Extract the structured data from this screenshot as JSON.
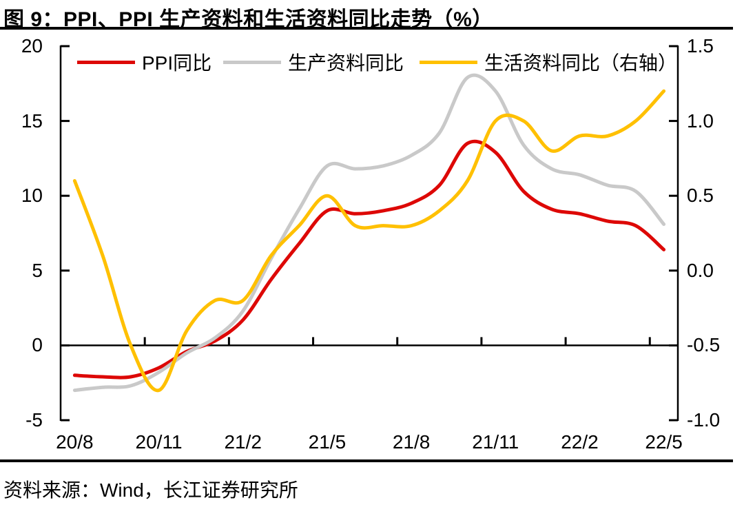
{
  "title": "图 9：PPI、PPI 生产资料和生活资料同比走势（%）",
  "source_note": "资料来源：Wind，长江证券研究所",
  "colors": {
    "ppi_red": "#DD0806",
    "producer_gray": "#C9C9C9",
    "consumer_yellow": "#FFC000",
    "axis_black": "#000000"
  },
  "chart_data": {
    "type": "line",
    "smooth": true,
    "legend_position": "top",
    "x": [
      "20/8",
      "20/9",
      "20/10",
      "20/11",
      "20/12",
      "21/1",
      "21/2",
      "21/3",
      "21/4",
      "21/5",
      "21/6",
      "21/7",
      "21/8",
      "21/9",
      "21/10",
      "21/11",
      "21/12",
      "22/1",
      "22/2",
      "22/3",
      "22/4",
      "22/5"
    ],
    "x_tick_labels": [
      "20/8",
      "20/11",
      "21/2",
      "21/5",
      "21/8",
      "21/11",
      "22/2",
      "22/5"
    ],
    "series": [
      {
        "name": "PPI同比",
        "axis": "left",
        "color": "#DD0806",
        "values": [
          -2.0,
          -2.1,
          -2.1,
          -1.5,
          -0.4,
          0.3,
          1.7,
          4.4,
          6.8,
          9.0,
          8.8,
          9.0,
          9.5,
          10.7,
          13.5,
          12.9,
          10.3,
          9.1,
          8.8,
          8.3,
          8.0,
          6.4
        ]
      },
      {
        "name": "生产资料同比",
        "axis": "left",
        "color": "#C9C9C9",
        "values": [
          -3.0,
          -2.8,
          -2.7,
          -1.8,
          -0.5,
          0.5,
          2.3,
          5.8,
          9.1,
          12.0,
          11.8,
          12.0,
          12.7,
          14.2,
          17.9,
          17.0,
          13.4,
          11.8,
          11.4,
          10.7,
          10.3,
          8.1
        ]
      },
      {
        "name": "生活资料同比（右轴）",
        "axis": "right",
        "color": "#FFC000",
        "values": [
          0.6,
          0.1,
          -0.5,
          -0.8,
          -0.4,
          -0.2,
          -0.2,
          0.1,
          0.3,
          0.5,
          0.3,
          0.3,
          0.3,
          0.4,
          0.6,
          1.0,
          1.0,
          0.8,
          0.9,
          0.9,
          1.0,
          1.2
        ]
      }
    ],
    "left_axis": {
      "tick_labels": [
        "20",
        "15",
        "10",
        "5",
        "0",
        "-5"
      ],
      "range": [
        -5,
        20
      ]
    },
    "right_axis": {
      "tick_labels": [
        "1.5",
        "1.0",
        "0.5",
        "0.0",
        "-0.5",
        "-1.0"
      ],
      "range": [
        -1.0,
        1.5
      ]
    },
    "grid": "zero-line-only"
  }
}
